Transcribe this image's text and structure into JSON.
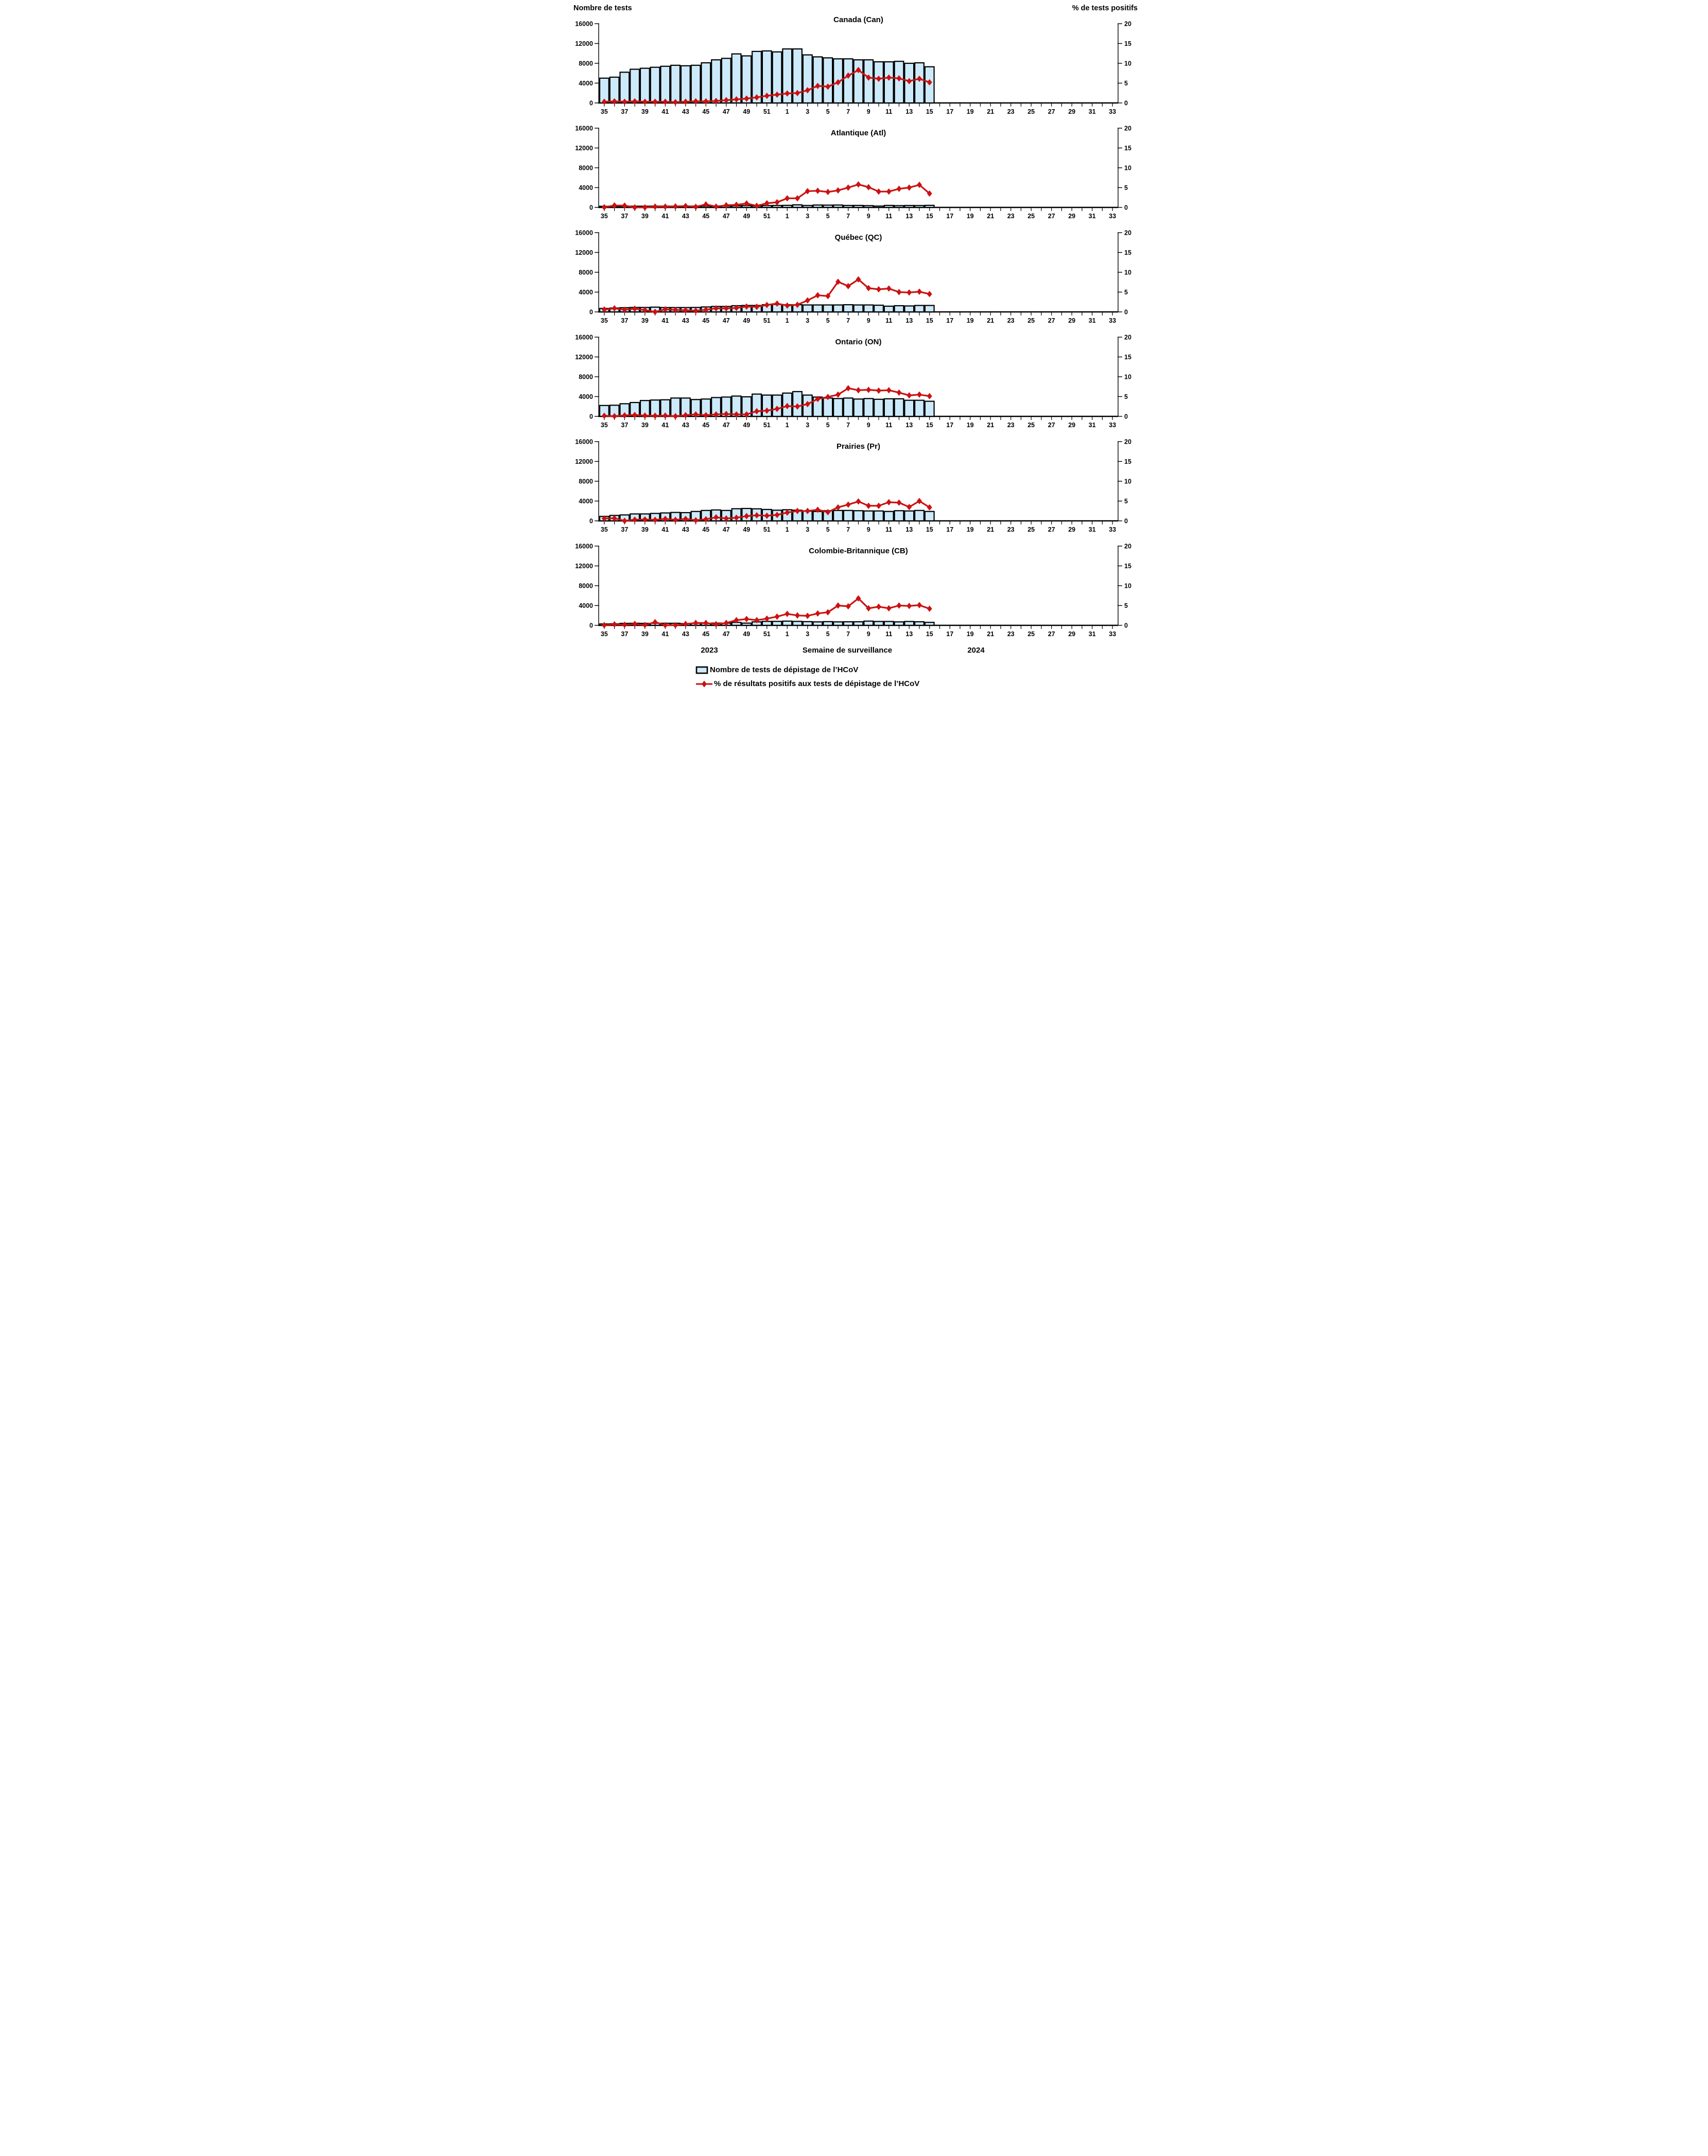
{
  "header": {
    "left_axis_title": "Nombre de tests",
    "right_axis_title": "% de tests positifs"
  },
  "footer": {
    "year_left": "2023",
    "xaxis_title": "Semaine de surveillance",
    "year_right": "2024"
  },
  "legend": {
    "tests_label": "Nombre de tests de dépistage de l’HCoV",
    "pct_label": "% de résultats positifs aux tests de dépistage de l’HCoV"
  },
  "colors": {
    "bar_fill": "#CDEAFB",
    "bar_border": "#000000",
    "line": "#CC1111",
    "text": "#000000",
    "background": "#FFFFFF"
  },
  "chart_data": {
    "type": "bar+line",
    "x_axis": {
      "week_slots": [
        35,
        36,
        37,
        38,
        39,
        40,
        41,
        42,
        43,
        44,
        45,
        46,
        47,
        48,
        49,
        50,
        51,
        52,
        1,
        2,
        3,
        4,
        5,
        6,
        7,
        8,
        9,
        10,
        11,
        12,
        13,
        14,
        15,
        16,
        17,
        18,
        19,
        20,
        21,
        22,
        23,
        24,
        25,
        26,
        27,
        28,
        29,
        30,
        31,
        32,
        33
      ],
      "labeled_weeks": [
        35,
        37,
        39,
        41,
        43,
        45,
        47,
        49,
        51,
        1,
        3,
        5,
        7,
        9,
        11,
        13,
        15,
        17,
        19,
        21,
        23,
        25,
        27,
        29,
        31,
        33
      ]
    },
    "left_axis": {
      "ticks": [
        0,
        4000,
        8000,
        12000,
        16000
      ],
      "max": 16000
    },
    "right_axis": {
      "ticks": [
        0,
        5,
        10,
        15,
        20
      ],
      "max": 20
    },
    "data_weeks": [
      35,
      36,
      37,
      38,
      39,
      40,
      41,
      42,
      43,
      44,
      45,
      46,
      47,
      48,
      49,
      50,
      51,
      52,
      1,
      2,
      3,
      4,
      5,
      6,
      7,
      8,
      9,
      10,
      11,
      12,
      13,
      14,
      15
    ],
    "panels": [
      {
        "region": "Canada (Can)",
        "tests": [
          5000,
          5200,
          6200,
          6800,
          7000,
          7200,
          7400,
          7600,
          7500,
          7600,
          8100,
          8700,
          9000,
          9900,
          9500,
          10400,
          10500,
          10300,
          10900,
          10900,
          9700,
          9300,
          9100,
          8900,
          8900,
          8700,
          8700,
          8300,
          8300,
          8400,
          8000,
          8100,
          7300
        ],
        "pct_positive": [
          0.3,
          0.4,
          0.3,
          0.4,
          0.3,
          0.3,
          0.3,
          0.2,
          0.3,
          0.4,
          0.4,
          0.5,
          0.7,
          0.9,
          1.1,
          1.4,
          1.8,
          2.1,
          2.4,
          2.5,
          3.2,
          4.3,
          4.1,
          5.2,
          6.9,
          8.3,
          6.4,
          6.1,
          6.4,
          6.2,
          5.5,
          6.1,
          5.2
        ]
      },
      {
        "region": "Atlantique (Atl)",
        "tests": [
          230,
          240,
          250,
          250,
          250,
          260,
          260,
          260,
          260,
          260,
          280,
          280,
          300,
          330,
          380,
          300,
          380,
          400,
          420,
          520,
          390,
          480,
          460,
          480,
          400,
          410,
          360,
          270,
          410,
          360,
          390,
          380,
          420
        ],
        "pct_positive": [
          0.05,
          0.5,
          0.45,
          0,
          0,
          0.2,
          0.2,
          0.25,
          0.35,
          0.15,
          0.75,
          0.2,
          0.55,
          0.65,
          1.0,
          0.4,
          1.05,
          1.3,
          2.3,
          2.3,
          4.1,
          4.2,
          3.9,
          4.3,
          5.0,
          5.8,
          5.1,
          4.0,
          4.0,
          4.7,
          5.0,
          5.7,
          3.5
        ]
      },
      {
        "region": "Québec (QC)",
        "tests": [
          700,
          780,
          850,
          900,
          900,
          960,
          880,
          880,
          880,
          900,
          1000,
          1100,
          1100,
          1250,
          1300,
          1300,
          1450,
          1500,
          1450,
          1450,
          1400,
          1400,
          1400,
          1400,
          1450,
          1400,
          1400,
          1350,
          1150,
          1250,
          1200,
          1300,
          1300
        ],
        "pct_positive": [
          0.6,
          0.9,
          0.55,
          0.8,
          0.45,
          0,
          0.65,
          0.5,
          0.4,
          0.3,
          0.55,
          0.9,
          0.9,
          1.0,
          1.35,
          1.3,
          1.75,
          2.1,
          1.6,
          1.8,
          2.9,
          4.2,
          4.0,
          7.6,
          6.5,
          8.2,
          6.0,
          5.7,
          5.9,
          5.0,
          4.9,
          5.1,
          4.5
        ]
      },
      {
        "region": "Ontario (ON)",
        "tests": [
          2200,
          2250,
          2550,
          2800,
          3200,
          3300,
          3350,
          3700,
          3700,
          3400,
          3500,
          3800,
          3900,
          4100,
          3950,
          4500,
          4300,
          4300,
          4700,
          5000,
          4300,
          3900,
          3700,
          3600,
          3700,
          3500,
          3600,
          3450,
          3550,
          3550,
          3250,
          3250,
          3050
        ],
        "pct_positive": [
          0.15,
          0.05,
          0.25,
          0.35,
          0.2,
          0.15,
          0.2,
          0.05,
          0.3,
          0.5,
          0.3,
          0.5,
          0.6,
          0.5,
          0.5,
          1.3,
          1.45,
          1.9,
          2.6,
          2.5,
          3.1,
          4.4,
          4.9,
          5.5,
          7.1,
          6.6,
          6.7,
          6.5,
          6.6,
          6.0,
          5.3,
          5.5,
          5.1
        ]
      },
      {
        "region": "Prairies (Pr)",
        "tests": [
          900,
          1100,
          1200,
          1400,
          1400,
          1500,
          1600,
          1700,
          1660,
          1900,
          2100,
          2200,
          2100,
          2450,
          2500,
          2430,
          2300,
          2150,
          2250,
          2150,
          1950,
          1900,
          2050,
          2100,
          2100,
          2050,
          2000,
          2000,
          1900,
          2050,
          2000,
          2100,
          1900
        ],
        "pct_positive": [
          0.6,
          0.65,
          0,
          0.3,
          0.35,
          0.25,
          0.5,
          0.25,
          0.5,
          0.15,
          0.4,
          0.9,
          0.6,
          0.8,
          1.2,
          1.4,
          1.3,
          1.5,
          2.1,
          2.5,
          2.5,
          2.8,
          2.2,
          3.4,
          4.1,
          4.9,
          3.8,
          3.8,
          4.7,
          4.6,
          3.5,
          5.0,
          3.4
        ]
      },
      {
        "region": "Colombie-Britannique (CB)",
        "tests": [
          280,
          300,
          400,
          420,
          400,
          420,
          420,
          420,
          350,
          400,
          400,
          450,
          450,
          600,
          450,
          700,
          800,
          800,
          850,
          800,
          750,
          700,
          750,
          700,
          720,
          720,
          850,
          780,
          780,
          700,
          780,
          720,
          600
        ],
        "pct_positive": [
          0.05,
          0.25,
          0.15,
          0.35,
          0.1,
          0.8,
          0.05,
          0.05,
          0.35,
          0.6,
          0.6,
          0.3,
          0.6,
          1.3,
          1.6,
          1.3,
          1.7,
          2.2,
          2.9,
          2.5,
          2.4,
          3.0,
          3.3,
          5.0,
          4.8,
          6.8,
          4.3,
          4.7,
          4.3,
          5.0,
          4.9,
          5.1,
          4.2
        ]
      }
    ]
  }
}
